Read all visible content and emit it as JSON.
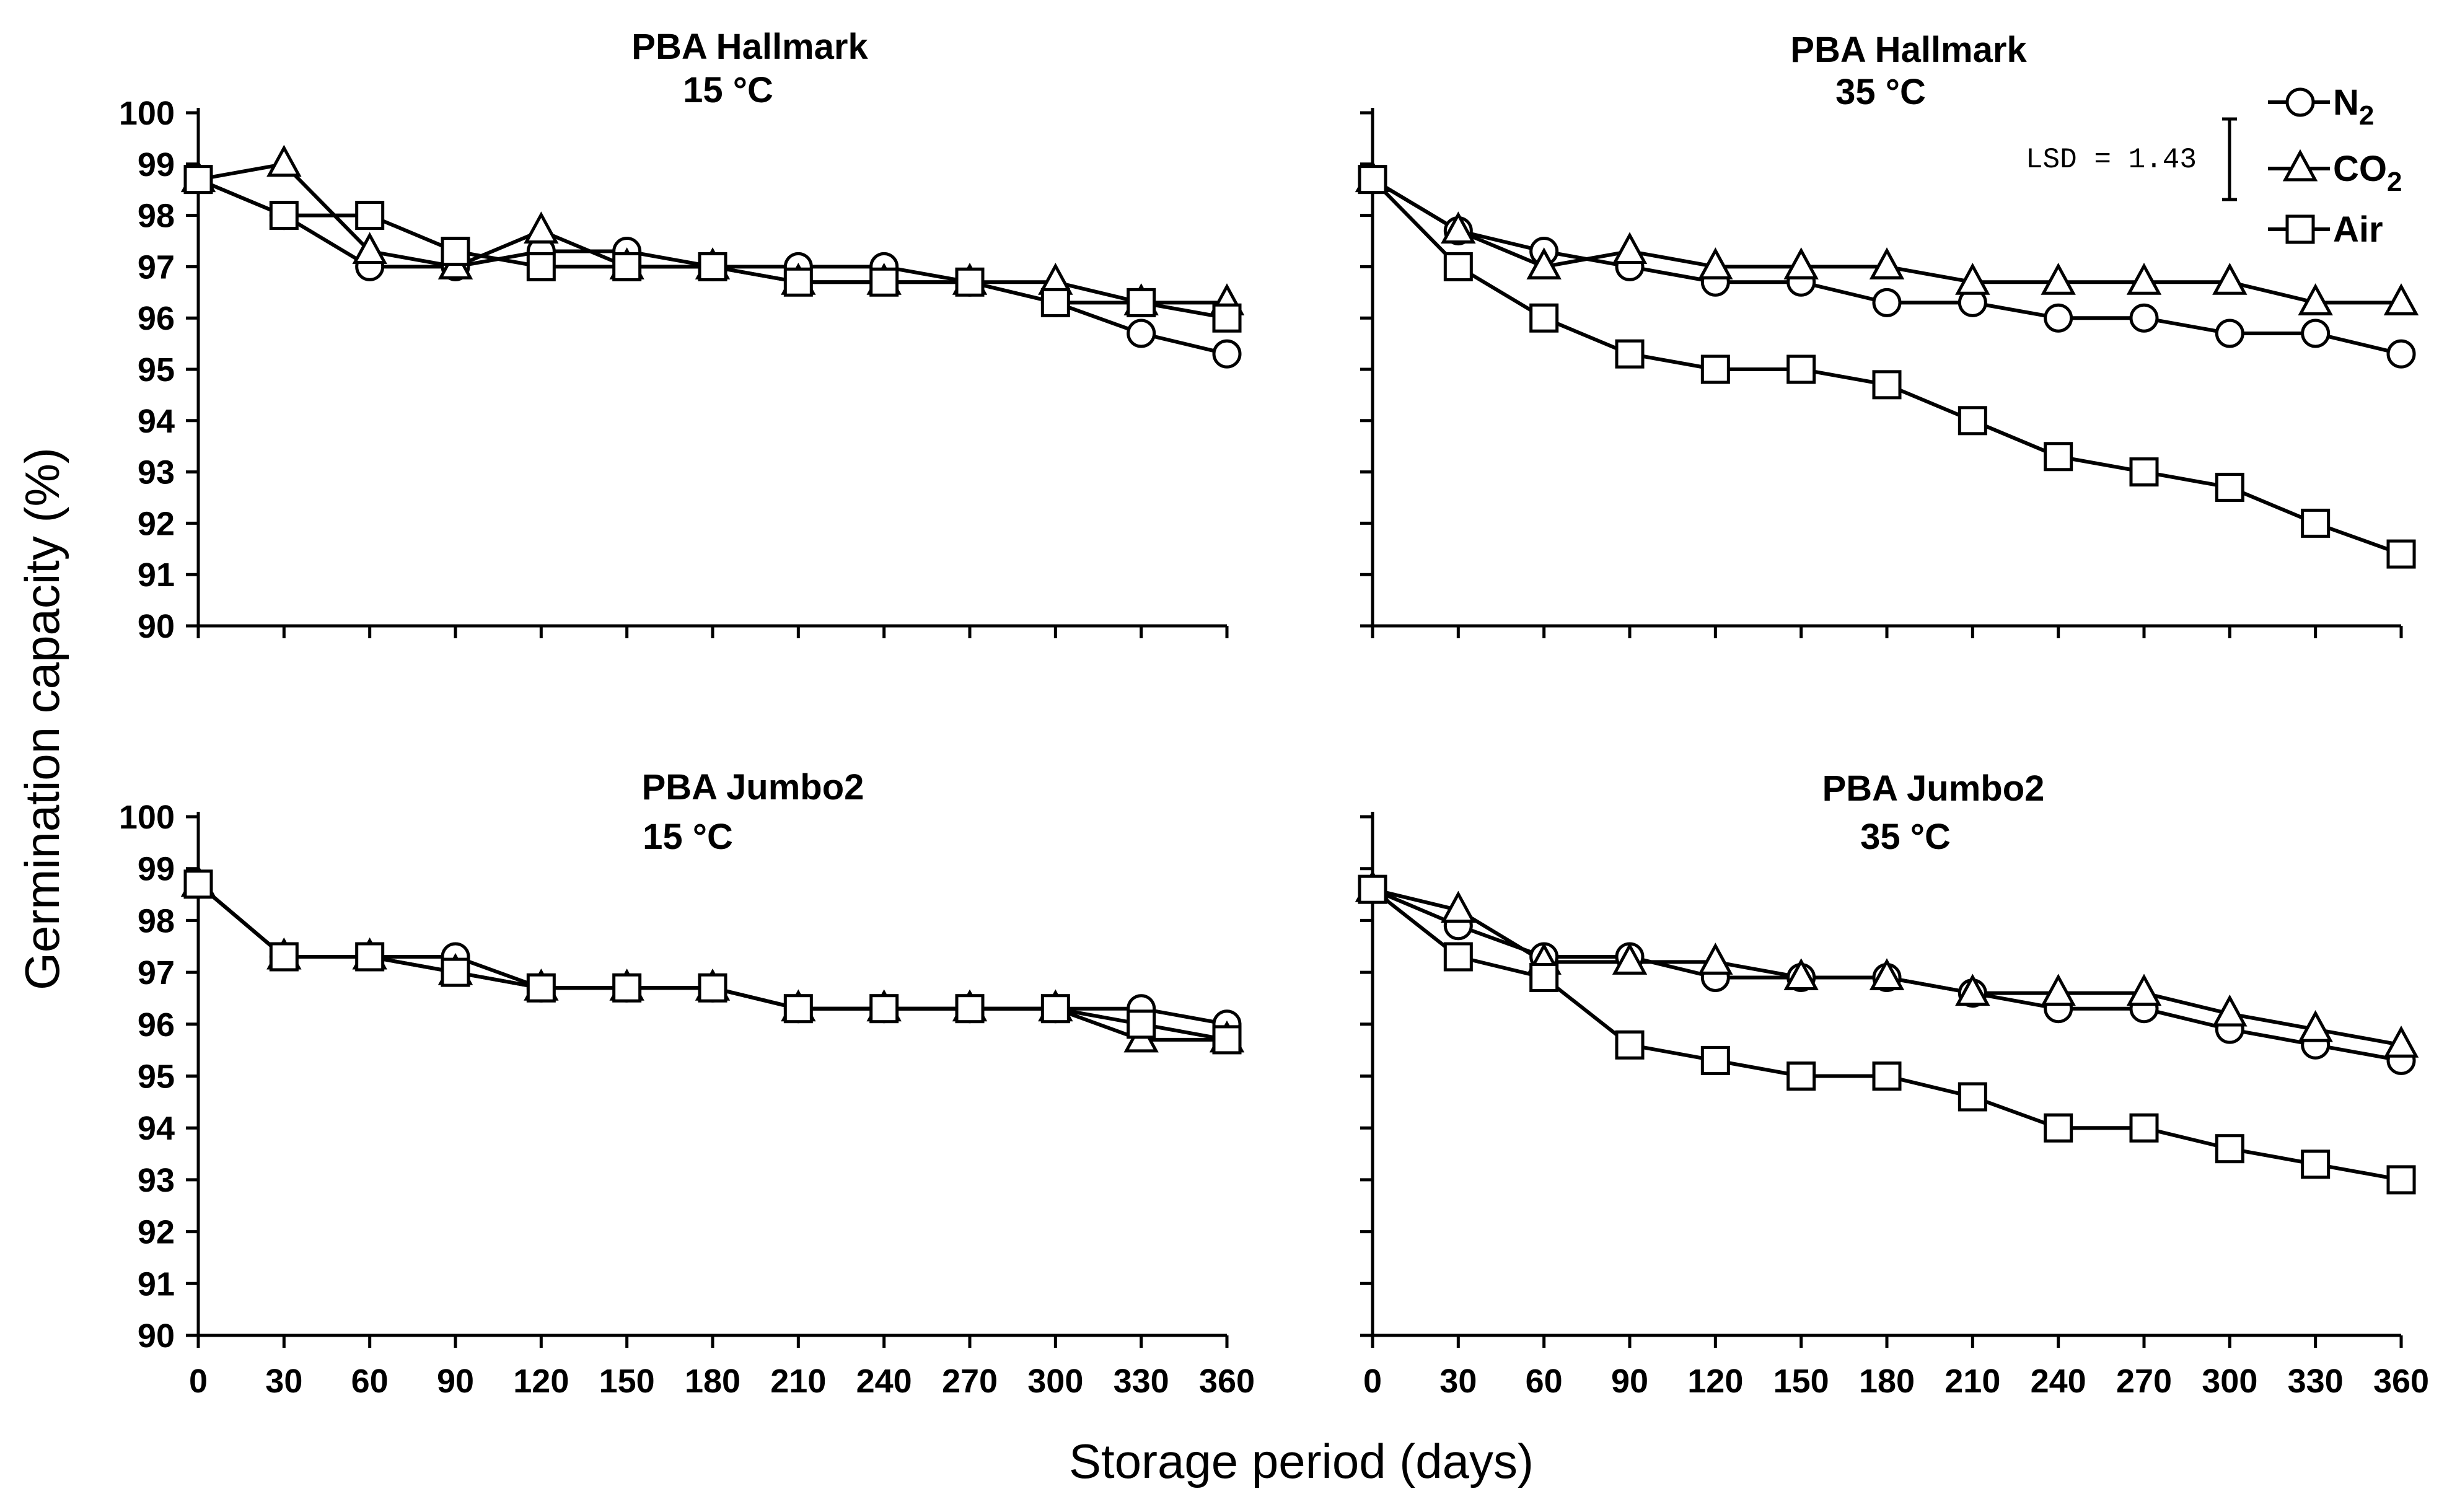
{
  "figure": {
    "ylabel": "Germination capacity (%)",
    "xlabel": "Storage period (days)",
    "lsd_label": "LSD = 1.43",
    "lsd_value": 1.43,
    "legend": [
      {
        "key": "N2",
        "base": "N",
        "sub": "2",
        "marker": "circle"
      },
      {
        "key": "CO2",
        "base": "CO",
        "sub": "2",
        "marker": "triangle"
      },
      {
        "key": "Air",
        "base": "Air",
        "sub": "",
        "marker": "square"
      }
    ]
  },
  "chart_data": [
    {
      "type": "line",
      "title": "PBA Hallmark",
      "subtitle": "15 °C",
      "x": [
        0,
        30,
        60,
        90,
        120,
        150,
        180,
        210,
        240,
        270,
        300,
        330,
        360
      ],
      "ylim": [
        90,
        100
      ],
      "xlim": [
        0,
        360
      ],
      "series": [
        {
          "name": "N2",
          "marker": "circle",
          "values": [
            98.7,
            98.0,
            97.0,
            97.0,
            97.3,
            97.3,
            97.0,
            97.0,
            97.0,
            96.7,
            96.3,
            95.7,
            95.3
          ]
        },
        {
          "name": "CO2",
          "marker": "triangle",
          "values": [
            98.7,
            99.0,
            97.3,
            97.0,
            97.7,
            97.0,
            97.0,
            96.7,
            96.7,
            96.7,
            96.7,
            96.3,
            96.3
          ]
        },
        {
          "name": "Air",
          "marker": "square",
          "values": [
            98.7,
            98.0,
            98.0,
            97.3,
            97.0,
            97.0,
            97.0,
            96.7,
            96.7,
            96.7,
            96.3,
            96.3,
            96.0
          ]
        }
      ]
    },
    {
      "type": "line",
      "title": "PBA Hallmark",
      "subtitle": "35 °C",
      "x": [
        0,
        30,
        60,
        90,
        120,
        150,
        180,
        210,
        240,
        270,
        300,
        330,
        360
      ],
      "ylim": [
        90,
        100
      ],
      "xlim": [
        0,
        360
      ],
      "series": [
        {
          "name": "N2",
          "marker": "circle",
          "values": [
            98.7,
            97.7,
            97.3,
            97.0,
            96.7,
            96.7,
            96.3,
            96.3,
            96.0,
            96.0,
            95.7,
            95.7,
            95.3
          ]
        },
        {
          "name": "CO2",
          "marker": "triangle",
          "values": [
            98.7,
            97.7,
            97.0,
            97.3,
            97.0,
            97.0,
            97.0,
            96.7,
            96.7,
            96.7,
            96.7,
            96.3,
            96.3
          ]
        },
        {
          "name": "Air",
          "marker": "square",
          "values": [
            98.7,
            97.0,
            96.0,
            95.3,
            95.0,
            95.0,
            94.7,
            94.0,
            93.3,
            93.0,
            92.7,
            92.0,
            91.4
          ]
        }
      ]
    },
    {
      "type": "line",
      "title": "PBA Jumbo2",
      "subtitle": "15 °C",
      "x": [
        0,
        30,
        60,
        90,
        120,
        150,
        180,
        210,
        240,
        270,
        300,
        330,
        360
      ],
      "ylim": [
        90,
        100
      ],
      "xlim": [
        0,
        360
      ],
      "series": [
        {
          "name": "N2",
          "marker": "circle",
          "values": [
            98.7,
            97.3,
            97.3,
            97.3,
            96.7,
            96.7,
            96.7,
            96.3,
            96.3,
            96.3,
            96.3,
            96.3,
            96.0
          ]
        },
        {
          "name": "CO2",
          "marker": "triangle",
          "values": [
            98.7,
            97.3,
            97.3,
            97.0,
            96.7,
            96.7,
            96.7,
            96.3,
            96.3,
            96.3,
            96.3,
            95.7,
            95.7
          ]
        },
        {
          "name": "Air",
          "marker": "square",
          "values": [
            98.7,
            97.3,
            97.3,
            97.0,
            96.7,
            96.7,
            96.7,
            96.3,
            96.3,
            96.3,
            96.3,
            96.0,
            95.7
          ]
        }
      ]
    },
    {
      "type": "line",
      "title": "PBA Jumbo2",
      "subtitle": "35 °C",
      "x": [
        0,
        30,
        60,
        90,
        120,
        150,
        180,
        210,
        240,
        270,
        300,
        330,
        360
      ],
      "ylim": [
        90,
        100
      ],
      "xlim": [
        0,
        360
      ],
      "series": [
        {
          "name": "N2",
          "marker": "circle",
          "values": [
            98.6,
            97.9,
            97.3,
            97.3,
            96.9,
            96.9,
            96.9,
            96.6,
            96.3,
            96.3,
            95.9,
            95.6,
            95.3
          ]
        },
        {
          "name": "CO2",
          "marker": "triangle",
          "values": [
            98.6,
            98.2,
            97.2,
            97.2,
            97.2,
            96.9,
            96.9,
            96.6,
            96.6,
            96.6,
            96.2,
            95.9,
            95.6
          ]
        },
        {
          "name": "Air",
          "marker": "square",
          "values": [
            98.6,
            97.3,
            96.9,
            95.6,
            95.3,
            95.0,
            95.0,
            94.6,
            94.0,
            94.0,
            93.6,
            93.3,
            93.0
          ]
        }
      ]
    }
  ]
}
